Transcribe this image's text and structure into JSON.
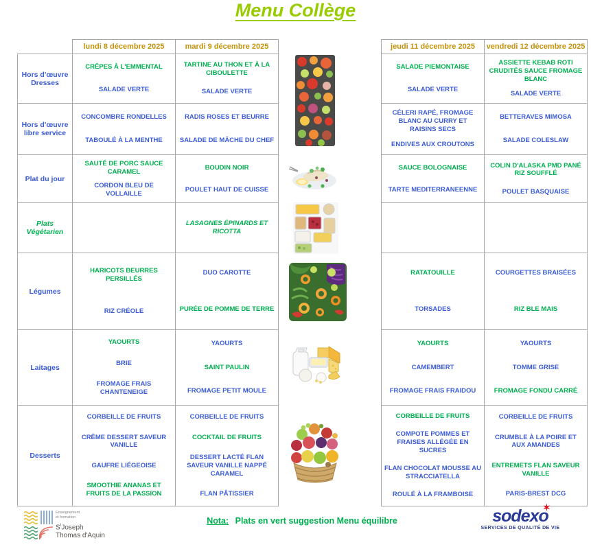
{
  "page": {
    "title": "Menu Collège"
  },
  "colors": {
    "title_green": "#99CC00",
    "day_header_gold": "#C5930B",
    "item_blue": "#3B5CD6",
    "suggestion_green": "#00B050",
    "sodexo_navy": "#2A3A96",
    "sodexo_red": "#E30613"
  },
  "table": {
    "day_headers": {
      "lundi": "lundi 8 décembre 2025",
      "mardi": "mardi 9 décembre 2025",
      "jeudi": "jeudi 11 décembre 2025",
      "vendredi": "vendredi 12 décembre 2025"
    },
    "rows": [
      {
        "category": "Hors d'œuvre Dresses",
        "category_style": "",
        "cells": {
          "lundi": [
            {
              "text": "CRÊPES À L'EMMENTAL",
              "green": true
            },
            {
              "text": "SALADE VERTE"
            }
          ],
          "mardi": [
            {
              "text": "TARTINE AU THON ET À LA CIBOULETTE",
              "green": true
            },
            {
              "text": "SALADE VERTE"
            }
          ],
          "jeudi": [
            {
              "text": "SALADE PIEMONTAISE",
              "green": true
            },
            {
              "text": "SALADE VERTE"
            }
          ],
          "vendredi": [
            {
              "text": "ASSIETTE KEBAB ROTI CRUDITÉS SAUCE FROMAGE BLANC",
              "green": true
            },
            {
              "text": "SALADE VERTE"
            }
          ]
        }
      },
      {
        "category": "Hors d'œuvre libre service",
        "category_style": "",
        "cells": {
          "lundi": [
            {
              "text": "CONCOMBRE RONDELLES"
            },
            {
              "text": "TABOULÉ À LA MENTHE"
            }
          ],
          "mardi": [
            {
              "text": "RADIS ROSES ET BEURRE"
            },
            {
              "text": "SALADE DE MÂCHE DU CHEF"
            }
          ],
          "jeudi": [
            {
              "text": "CÉLERI RAPÉ, FROMAGE BLANC AU CURRY ET RAISINS SECS"
            },
            {
              "text": "ENDIVES AUX CROUTONS"
            }
          ],
          "vendredi": [
            {
              "text": "BETTERAVES MIMOSA"
            },
            {
              "text": "SALADE COLESLAW"
            }
          ]
        }
      },
      {
        "category": "Plat du jour",
        "category_style": "",
        "cells": {
          "lundi": [
            {
              "text": "SAUTÉ DE PORC SAUCE CARAMEL",
              "green": true
            },
            {
              "text": "CORDON BLEU DE VOLLAILLE"
            }
          ],
          "mardi": [
            {
              "text": "BOUDIN NOIR",
              "green": true
            },
            {
              "text": "POULET HAUT DE CUISSE"
            }
          ],
          "jeudi": [
            {
              "text": "SAUCE BOLOGNAISE",
              "green": true
            },
            {
              "text": "TARTE MEDITERRANEENNE"
            }
          ],
          "vendredi": [
            {
              "text": "COLIN D'ALASKA PMD PANÉ RIZ SOUFFLÉ",
              "green": true
            },
            {
              "text": "POULET BASQUAISE"
            }
          ]
        }
      },
      {
        "category": "Plats Végétarien",
        "category_style": "green-italic",
        "cells": {
          "lundi": [],
          "mardi": [
            {
              "text": "LASAGNES ÉPINARDS ET RICOTTA",
              "green": true,
              "italic": true
            }
          ],
          "jeudi": [],
          "vendredi": []
        }
      },
      {
        "category": "Légumes",
        "category_style": "",
        "cells": {
          "lundi": [
            {
              "text": "HARICOTS BEURRES PERSILLÉS",
              "green": true
            },
            {
              "text": "RIZ CRÉOLE"
            }
          ],
          "mardi": [
            {
              "text": "DUO CAROTTE"
            },
            {
              "text": "PURÉE DE POMME DE TERRE",
              "green": true
            }
          ],
          "jeudi": [
            {
              "text": "RATATOUILLE",
              "green": true
            },
            {
              "text": "TORSADES"
            }
          ],
          "vendredi": [
            {
              "text": "COURGETTES BRAISÉES"
            },
            {
              "text": "RIZ BLE MAIS",
              "green": true
            }
          ]
        }
      },
      {
        "category": "Laitages",
        "category_style": "",
        "cells": {
          "lundi": [
            {
              "text": "YAOURTS",
              "green": true
            },
            {
              "text": "BRIE"
            },
            {
              "text": "FROMAGE FRAIS CHANTENEIGE"
            }
          ],
          "mardi": [
            {
              "text": "YAOURTS"
            },
            {
              "text": "SAINT PAULIN",
              "green": true
            },
            {
              "text": "FROMAGE PETIT MOULE"
            }
          ],
          "jeudi": [
            {
              "text": "YAOURTS",
              "green": true
            },
            {
              "text": "CAMEMBERT"
            },
            {
              "text": "FROMAGE FRAIS FRAIDOU"
            }
          ],
          "vendredi": [
            {
              "text": "YAOURTS"
            },
            {
              "text": "TOMME GRISE"
            },
            {
              "text": "FROMAGE FONDU CARRÉ",
              "green": true
            }
          ]
        }
      },
      {
        "category": "Desserts",
        "category_style": "",
        "cells": {
          "lundi": [
            {
              "text": "CORBEILLE DE FRUITS"
            },
            {
              "text": "CRÊME DESSERT SAVEUR VANILLE"
            },
            {
              "text": "GAUFRE LIÉGEOISE"
            },
            {
              "text": "SMOOTHIE ANANAS ET FRUITS DE LA PASSION",
              "green": true
            }
          ],
          "mardi": [
            {
              "text": "CORBEILLE DE FRUITS"
            },
            {
              "text": "COCKTAIL DE FRUITS",
              "green": true
            },
            {
              "text": "DESSERT LACTÉ FLAN SAVEUR VANILLE NAPPÉ CARAMEL"
            },
            {
              "text": "FLAN PÂTISSIER"
            }
          ],
          "jeudi": [
            {
              "text": "CORBEILLE DE FRUITS",
              "green": true
            },
            {
              "text": "COMPOTE POMMES ET FRAISES ALLÉGÉE EN SUCRES"
            },
            {
              "text": "FLAN CHOCOLAT MOUSSE AU STRACCIATELLA"
            },
            {
              "text": "ROULÉ À LA FRAMBOISE"
            }
          ],
          "vendredi": [
            {
              "text": "CORBEILLE DE FRUITS"
            },
            {
              "text": "CRUMBLE À LA POIRE ET AUX AMANDES"
            },
            {
              "text": "ENTREMETS FLAN SAVEUR VANILLE",
              "green": true
            },
            {
              "text": "PARIS-BREST DCG"
            }
          ]
        }
      }
    ]
  },
  "images": [
    {
      "name": "tomatoes-crudites-photo"
    },
    {
      "name": "fish-plate-photo"
    },
    {
      "name": "meal-containers-photo"
    },
    {
      "name": "salad-mix-photo"
    },
    {
      "name": "cheese-dairy-photo"
    },
    {
      "name": "fruit-basket-photo"
    }
  ],
  "footer": {
    "school_logo": {
      "line1": "Enseignement",
      "line2": "et formation",
      "name_prefix": "S",
      "name_sup": "t",
      "name1": "Joseph",
      "name2": "Thomas d'Aquin"
    },
    "nota_label": "Nota:",
    "nota_text": "Plats en vert suggestion Menu équilibre",
    "sodexo": {
      "wordmark": "sodexo",
      "star": "✶",
      "tagline": "SERVICES DE QUALITÉ DE VIE"
    }
  }
}
